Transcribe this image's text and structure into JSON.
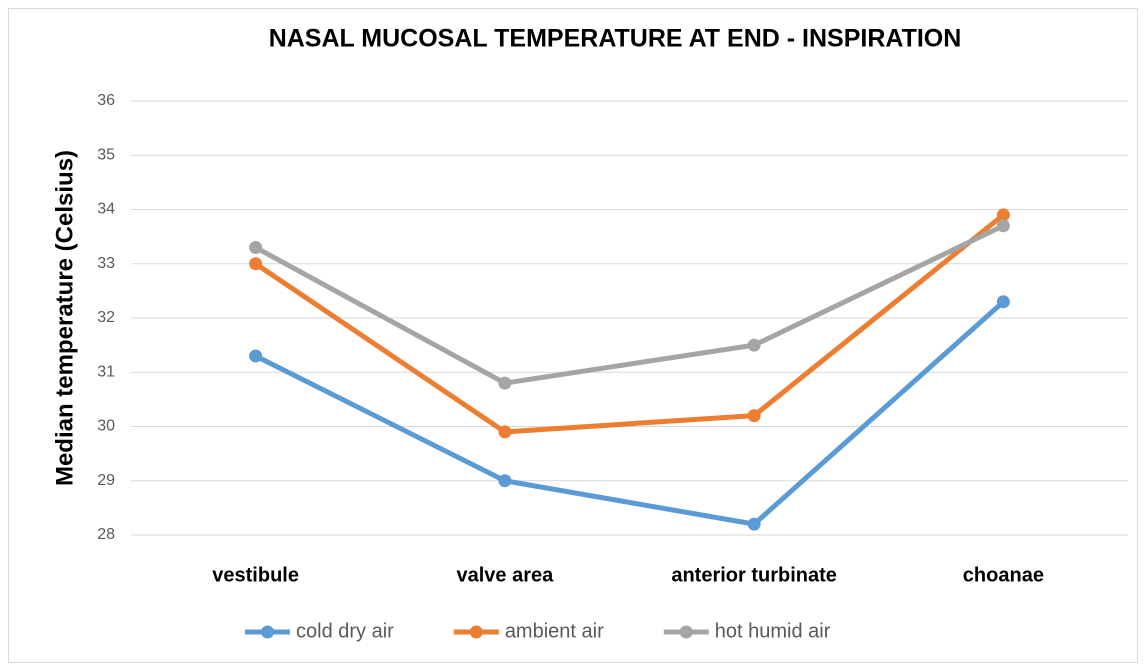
{
  "chart_data": {
    "type": "line",
    "title": "NASAL MUCOSAL TEMPERATURE AT END - INSPIRATION",
    "ylabel": "Median temperature (Celsius)",
    "categories": [
      "vestibule",
      "valve area",
      "anterior turbinate",
      "choanae"
    ],
    "series": [
      {
        "name": "cold dry air",
        "color": "#5b9bd5",
        "values": [
          31.3,
          29.0,
          28.2,
          32.3
        ]
      },
      {
        "name": "ambient air",
        "color": "#ed7d31",
        "values": [
          33.0,
          29.9,
          30.2,
          33.9
        ]
      },
      {
        "name": "hot humid air",
        "color": "#a5a5a5",
        "values": [
          33.3,
          30.8,
          31.5,
          33.7
        ]
      }
    ],
    "ylim": [
      28,
      36
    ],
    "yticks": [
      28,
      29,
      30,
      31,
      32,
      33,
      34,
      35,
      36
    ],
    "grid": true,
    "legend": "bottom"
  }
}
